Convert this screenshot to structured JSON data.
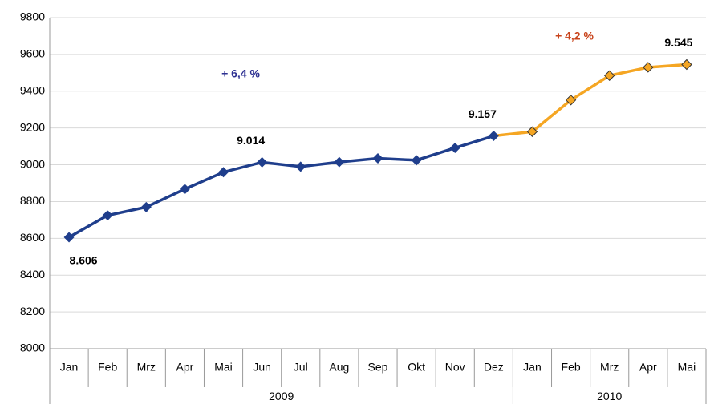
{
  "chart_data": {
    "type": "line",
    "groups": [
      {
        "name": "2009",
        "categories": [
          "Jan",
          "Feb",
          "Mrz",
          "Apr",
          "Mai",
          "Jun",
          "Jul",
          "Aug",
          "Sep",
          "Okt",
          "Nov",
          "Dez"
        ]
      },
      {
        "name": "2010",
        "categories": [
          "Jan",
          "Feb",
          "Mrz",
          "Apr",
          "Mai"
        ]
      }
    ],
    "series": [
      {
        "color": "#1f3e8c",
        "marker_color": "#1f3e8c",
        "values": [
          8606,
          8725,
          8770,
          8868,
          8960,
          9014,
          8990,
          9015,
          9035,
          9025,
          9092,
          9157,
          null,
          null,
          null,
          null,
          null
        ],
        "value_labels": [
          "8.606",
          null,
          null,
          null,
          null,
          "9.014",
          null,
          null,
          null,
          null,
          null,
          "9.157",
          null,
          null,
          null,
          null,
          null
        ]
      },
      {
        "color": "#f5a623",
        "marker_color": "#f5a623",
        "values": [
          null,
          null,
          null,
          null,
          null,
          null,
          null,
          null,
          null,
          null,
          null,
          9157,
          9180,
          9352,
          9485,
          9530,
          9545
        ],
        "value_labels": [
          null,
          null,
          null,
          null,
          null,
          null,
          null,
          null,
          null,
          null,
          null,
          null,
          null,
          null,
          null,
          null,
          "9.545"
        ]
      }
    ],
    "annotations": [
      {
        "text": "+ 6,4 %",
        "color": "#2e3192"
      },
      {
        "text": "+ 4,2 %",
        "color": "#c8431b"
      }
    ],
    "ylim": [
      8000,
      9800
    ],
    "yticks": [
      8000,
      8200,
      8400,
      8600,
      8800,
      9000,
      9200,
      9400,
      9600,
      9800
    ],
    "grid": true
  }
}
